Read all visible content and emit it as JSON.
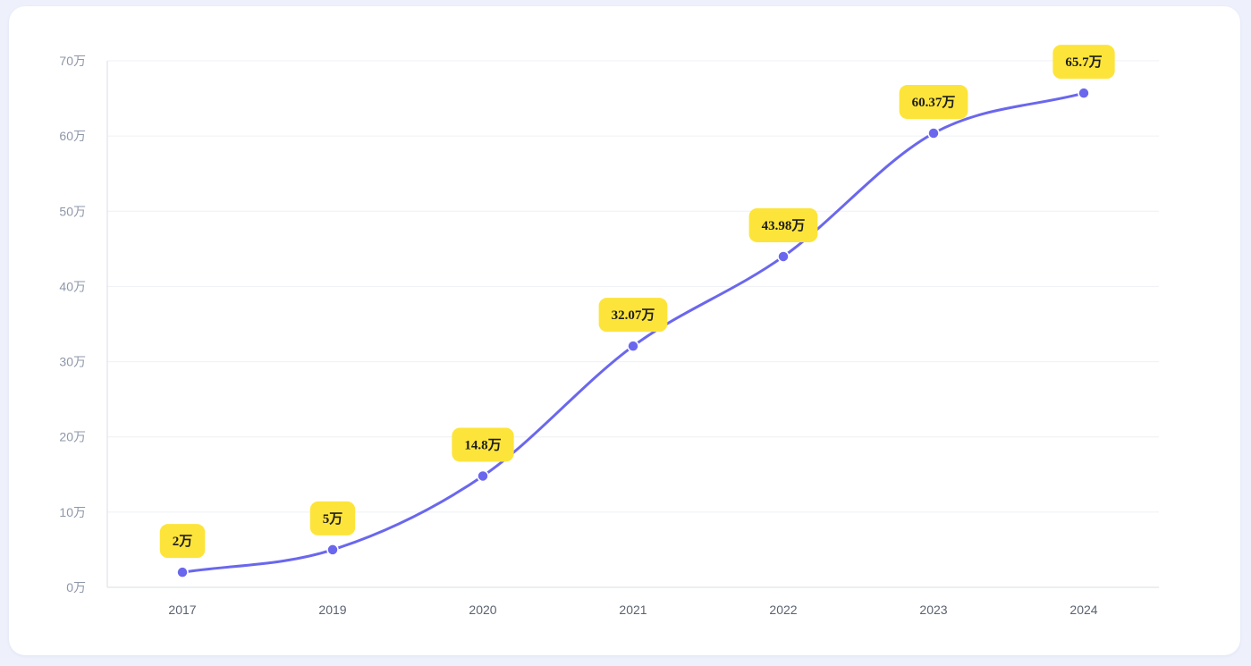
{
  "chart_data": {
    "type": "line",
    "title": "",
    "xlabel": "",
    "ylabel": "",
    "categories": [
      "2017",
      "2019",
      "2020",
      "2021",
      "2022",
      "2023",
      "2024"
    ],
    "series": [
      {
        "values": [
          2,
          5,
          14.8,
          32.07,
          43.98,
          60.37,
          65.7
        ],
        "data_labels": [
          "2万",
          "5万",
          "14.8万",
          "32.07万",
          "43.98万",
          "60.37万",
          "65.7万"
        ]
      }
    ],
    "y_tick_labels": [
      "0万",
      "10万",
      "20万",
      "30万",
      "40万",
      "50万",
      "60万",
      "70万"
    ],
    "y_ticks": [
      0,
      10,
      20,
      30,
      40,
      50,
      60,
      70
    ],
    "ylim": [
      0,
      70
    ],
    "y_unit": "万",
    "grid": true,
    "smooth": true,
    "colors": {
      "line": "#6a67ee",
      "label_bg": "#fde43a",
      "label_text": "#1d1d1d",
      "grid": "#eef0f4",
      "axis": "#d9dde6"
    }
  }
}
